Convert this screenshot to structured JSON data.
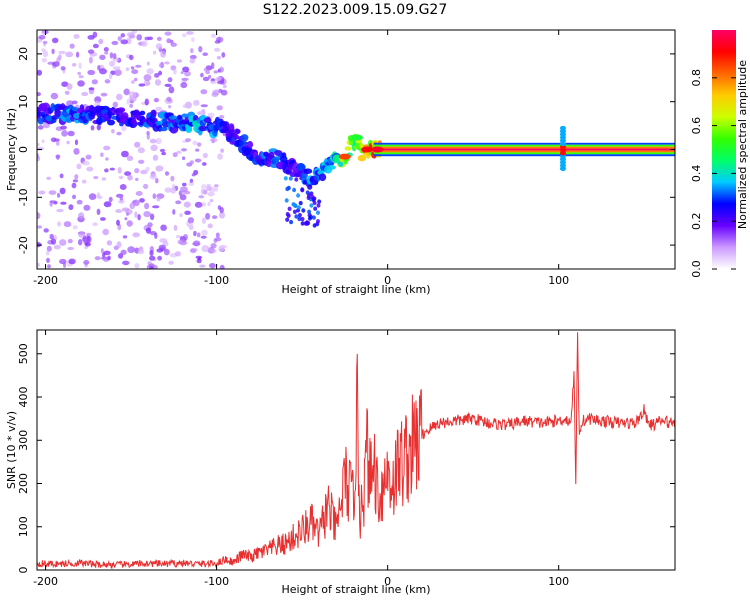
{
  "figure": {
    "title": "S122.2023.009.15.09.G27"
  },
  "chart_data": [
    {
      "type": "heatmap",
      "panel": "spectrogram",
      "xlabel": "Height of straight line (km)",
      "ylabel": "Frequency (Hz)",
      "xlim": [
        -205,
        168
      ],
      "ylim": [
        -25,
        25
      ],
      "xticks": [
        -200,
        -100,
        0,
        100
      ],
      "yticks": [
        -20,
        -10,
        0,
        10,
        20
      ],
      "grid": false,
      "colorbar": {
        "label": "Normalized spectral amplitude",
        "range": [
          0,
          1
        ],
        "ticks": [
          0.0,
          0.2,
          0.4,
          0.6,
          0.8
        ],
        "colors": [
          "#ffffff",
          "#cc99ff",
          "#6600ff",
          "#0000ff",
          "#00ccff",
          "#00ff66",
          "#33ff00",
          "#ccff00",
          "#ffcc00",
          "#ff6600",
          "#ff0000",
          "#ff0066"
        ]
      },
      "ridge": {
        "x": [
          -200,
          -185,
          -170,
          -150,
          -130,
          -115,
          -100,
          -92,
          -85,
          -78,
          -70,
          -62,
          -55,
          -50,
          -45,
          -40,
          -35,
          -30,
          -25,
          -20,
          -15,
          -10,
          -5,
          0,
          50,
          100,
          102,
          104,
          110,
          168
        ],
        "frequency": [
          7.5,
          7.5,
          7.2,
          6.5,
          5.8,
          5.5,
          4.5,
          3.5,
          1.5,
          -1.0,
          -1.5,
          -2.5,
          -3.5,
          -5.0,
          -6.5,
          -5.5,
          -3.5,
          -1.5,
          -1.5,
          2.5,
          -0.5,
          0.0,
          0.0,
          0.0,
          0.0,
          0.0,
          2.5,
          0.0,
          0.0,
          0.0
        ],
        "amplitude": [
          0.3,
          0.35,
          0.3,
          0.3,
          0.35,
          0.4,
          0.35,
          0.3,
          0.3,
          0.3,
          0.35,
          0.3,
          0.25,
          0.3,
          0.35,
          0.4,
          0.4,
          0.55,
          0.8,
          0.55,
          0.85,
          0.9,
          0.95,
          1.0,
          1.0,
          1.0,
          0.4,
          1.0,
          1.0,
          0.9
        ]
      }
    },
    {
      "type": "line",
      "panel": "snr",
      "xlabel": "Height of straight line (km)",
      "ylabel": "SNR (10 * v/v)",
      "xlim": [
        -205,
        168
      ],
      "ylim": [
        0,
        555
      ],
      "xticks": [
        -200,
        -100,
        0,
        100
      ],
      "yticks": [
        0,
        100,
        200,
        300,
        400,
        500
      ],
      "grid": false,
      "color": "#e83030",
      "series": [
        {
          "x": [
            -205,
            -190,
            -180,
            -170,
            -160,
            -150,
            -140,
            -130,
            -120,
            -110,
            -100,
            -95,
            -90,
            -85,
            -80,
            -75,
            -70,
            -65,
            -60,
            -55,
            -50,
            -45,
            -40,
            -35,
            -30,
            -25,
            -20,
            -18,
            -16,
            -15,
            -14,
            -12,
            -10,
            -8,
            -5,
            -2,
            0,
            3,
            6,
            10,
            14,
            18,
            22,
            26,
            30,
            40,
            50,
            60,
            70,
            80,
            90,
            100,
            104,
            107,
            109,
            110,
            111,
            112,
            114,
            118,
            125,
            135,
            145,
            150,
            152,
            155,
            160,
            168
          ],
          "y": [
            15,
            14,
            16,
            13,
            12,
            13,
            15,
            14,
            16,
            14,
            15,
            25,
            18,
            35,
            30,
            40,
            45,
            55,
            60,
            75,
            90,
            110,
            80,
            150,
            90,
            210,
            160,
            380,
            100,
            220,
            170,
            280,
            200,
            250,
            170,
            200,
            230,
            200,
            240,
            260,
            280,
            300,
            320,
            330,
            340,
            345,
            350,
            340,
            335,
            345,
            340,
            345,
            350,
            340,
            450,
            190,
            555,
            320,
            345,
            350,
            345,
            340,
            340,
            370,
            340,
            335,
            345,
            340
          ]
        }
      ]
    }
  ]
}
